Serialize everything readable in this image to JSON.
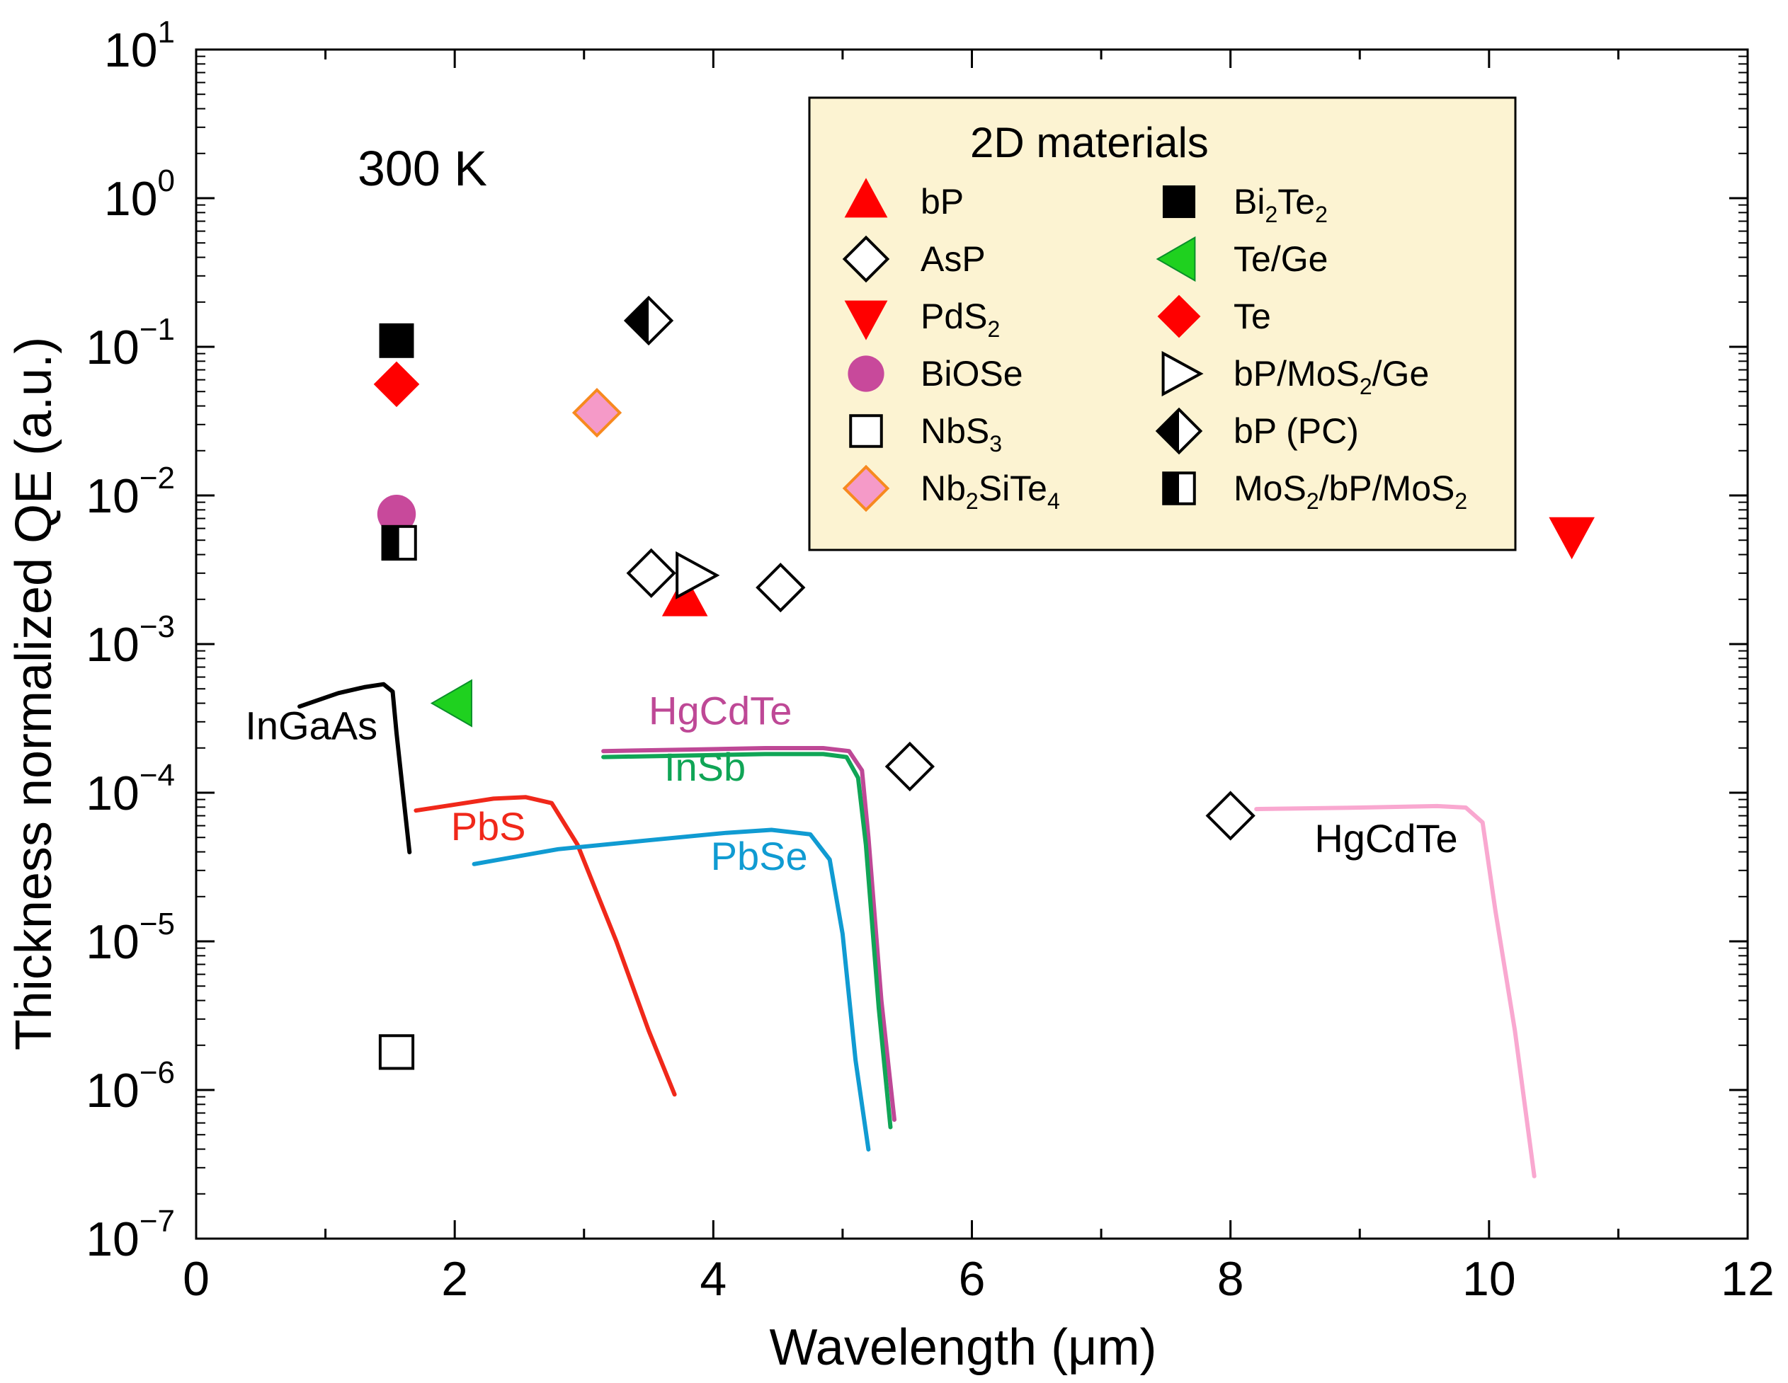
{
  "chart_data": {
    "type": "scatter",
    "xlabel": "Wavelength (μm)",
    "ylabel": "Thickness normalized QE (a.u.)",
    "xlim": [
      0,
      12
    ],
    "ylim_log10": [
      -7,
      1
    ],
    "x_ticks": [
      0,
      2,
      4,
      6,
      8,
      10,
      12
    ],
    "y_ticks": [
      {
        "base": "10",
        "exp": "1",
        "value": 1
      },
      {
        "base": "10",
        "exp": "0",
        "value": 0
      },
      {
        "base": "10",
        "exp": "−1",
        "value": -1
      },
      {
        "base": "10",
        "exp": "−2",
        "value": -2
      },
      {
        "base": "10",
        "exp": "−3",
        "value": -3
      },
      {
        "base": "10",
        "exp": "−4",
        "value": -4
      },
      {
        "base": "10",
        "exp": "−5",
        "value": -5
      },
      {
        "base": "10",
        "exp": "−6",
        "value": -6
      },
      {
        "base": "10",
        "exp": "−7",
        "value": -7
      }
    ],
    "annotation": "300 K",
    "legend": {
      "title": "2D materials",
      "placement": "top-right",
      "background": "#fcf3d2",
      "entries": [
        {
          "id": "bP",
          "marker": "triangle-up",
          "color": "#ff0000",
          "parts": [
            {
              "t": "bP"
            }
          ]
        },
        {
          "id": "AsP",
          "marker": "diamond-open",
          "color": "#000000",
          "parts": [
            {
              "t": "AsP"
            }
          ]
        },
        {
          "id": "PdS2",
          "marker": "triangle-down",
          "color": "#ff0000",
          "parts": [
            {
              "t": "PdS"
            },
            {
              "t": "2",
              "sub": true
            }
          ]
        },
        {
          "id": "BiOSe",
          "marker": "circle",
          "color": "#c8499b",
          "parts": [
            {
              "t": "BiOSe"
            }
          ]
        },
        {
          "id": "NbS3",
          "marker": "square-open",
          "color": "#000000",
          "parts": [
            {
              "t": "NbS"
            },
            {
              "t": "3",
              "sub": true
            }
          ]
        },
        {
          "id": "Nb2SiTe4",
          "marker": "diamond-pink",
          "color": "#f59ac8",
          "edge": "#f7891f",
          "parts": [
            {
              "t": "Nb"
            },
            {
              "t": "2",
              "sub": true
            },
            {
              "t": "SiTe"
            },
            {
              "t": "4",
              "sub": true
            }
          ]
        },
        {
          "id": "Bi2Te2",
          "marker": "square",
          "color": "#000000",
          "parts": [
            {
              "t": "Bi"
            },
            {
              "t": "2",
              "sub": true
            },
            {
              "t": "Te"
            },
            {
              "t": "2",
              "sub": true
            }
          ]
        },
        {
          "id": "TeGe",
          "marker": "triangle-left",
          "color": "#1fd11f",
          "parts": [
            {
              "t": "Te/Ge"
            }
          ]
        },
        {
          "id": "Te",
          "marker": "diamond",
          "color": "#ff0000",
          "parts": [
            {
              "t": "Te"
            }
          ]
        },
        {
          "id": "bPMoS2Ge",
          "marker": "triangle-right-open",
          "color": "#000000",
          "parts": [
            {
              "t": "bP/MoS"
            },
            {
              "t": "2",
              "sub": true
            },
            {
              "t": "/Ge"
            }
          ]
        },
        {
          "id": "bPPC",
          "marker": "diamond-half",
          "color": "#000000",
          "parts": [
            {
              "t": "bP (PC)"
            }
          ]
        },
        {
          "id": "MoS2bPMoS2",
          "marker": "square-half",
          "color": "#000000",
          "parts": [
            {
              "t": "MoS"
            },
            {
              "t": "2",
              "sub": true
            },
            {
              "t": "/bP/MoS"
            },
            {
              "t": "2",
              "sub": true
            }
          ]
        }
      ]
    },
    "points": [
      {
        "series": "bP",
        "x": 3.78,
        "y": 0.002
      },
      {
        "series": "AsP",
        "x": 3.52,
        "y": 0.003
      },
      {
        "series": "AsP",
        "x": 4.52,
        "y": 0.0024
      },
      {
        "series": "AsP",
        "x": 5.52,
        "y": 0.00015
      },
      {
        "series": "AsP",
        "x": 8.0,
        "y": 7e-05
      },
      {
        "series": "PdS2",
        "x": 10.64,
        "y": 0.0055
      },
      {
        "series": "BiOSe",
        "x": 1.55,
        "y": 0.0075
      },
      {
        "series": "NbS3",
        "x": 1.55,
        "y": 1.8e-06
      },
      {
        "series": "Nb2SiTe4",
        "x": 3.1,
        "y": 0.036
      },
      {
        "series": "Bi2Te2",
        "x": 1.55,
        "y": 0.11
      },
      {
        "series": "TeGe",
        "x": 2.0,
        "y": 0.0004
      },
      {
        "series": "Te",
        "x": 1.55,
        "y": 0.056
      },
      {
        "series": "bPMoS2Ge",
        "x": 3.85,
        "y": 0.0029
      },
      {
        "series": "bPPC",
        "x": 3.5,
        "y": 0.15
      },
      {
        "series": "MoS2bPMoS2",
        "x": 1.57,
        "y": 0.0048
      }
    ],
    "curves": [
      {
        "name": "InGaAs",
        "color": "#000000",
        "label_color": "#000000",
        "label": {
          "x": 0.38,
          "log": -3.64,
          "anchor": "start"
        },
        "points": [
          [
            0.8,
            -3.42
          ],
          [
            1.1,
            -3.33
          ],
          [
            1.3,
            -3.29
          ],
          [
            1.45,
            -3.27
          ],
          [
            1.52,
            -3.32
          ],
          [
            1.55,
            -3.6
          ],
          [
            1.6,
            -4.0
          ],
          [
            1.65,
            -4.4
          ]
        ]
      },
      {
        "name": "PbS",
        "color": "#f0281a",
        "label_color": "#f0281a",
        "label": {
          "x": 1.97,
          "log": -4.32,
          "anchor": "start"
        },
        "points": [
          [
            1.7,
            -4.12
          ],
          [
            2.0,
            -4.08
          ],
          [
            2.3,
            -4.04
          ],
          [
            2.55,
            -4.03
          ],
          [
            2.75,
            -4.07
          ],
          [
            2.95,
            -4.35
          ],
          [
            3.25,
            -5.0
          ],
          [
            3.5,
            -5.6
          ],
          [
            3.7,
            -6.03
          ]
        ]
      },
      {
        "name": "HgCdTe",
        "color": "#be4896",
        "label_color": "#be4896",
        "label": {
          "x": 3.5,
          "log": -3.54,
          "anchor": "start"
        },
        "points": [
          [
            3.15,
            -3.72
          ],
          [
            3.8,
            -3.71
          ],
          [
            4.4,
            -3.7
          ],
          [
            4.85,
            -3.7
          ],
          [
            5.05,
            -3.72
          ],
          [
            5.15,
            -3.85
          ],
          [
            5.2,
            -4.3
          ],
          [
            5.3,
            -5.4
          ],
          [
            5.4,
            -6.2
          ]
        ]
      },
      {
        "name": "InSb",
        "color": "#10a556",
        "label_color": "#10a556",
        "label": {
          "x": 3.62,
          "log": -3.92,
          "anchor": "start"
        },
        "points": [
          [
            3.15,
            -3.76
          ],
          [
            3.8,
            -3.75
          ],
          [
            4.4,
            -3.74
          ],
          [
            4.85,
            -3.74
          ],
          [
            5.03,
            -3.76
          ],
          [
            5.12,
            -3.9
          ],
          [
            5.18,
            -4.35
          ],
          [
            5.28,
            -5.45
          ],
          [
            5.37,
            -6.25
          ]
        ]
      },
      {
        "name": "PbSe",
        "color": "#109bd2",
        "label_color": "#109bd2",
        "label": {
          "x": 3.98,
          "log": -4.52,
          "anchor": "start"
        },
        "points": [
          [
            2.15,
            -4.48
          ],
          [
            2.8,
            -4.38
          ],
          [
            3.5,
            -4.32
          ],
          [
            4.1,
            -4.27
          ],
          [
            4.45,
            -4.25
          ],
          [
            4.75,
            -4.28
          ],
          [
            4.9,
            -4.45
          ],
          [
            5.0,
            -4.95
          ],
          [
            5.1,
            -5.8
          ],
          [
            5.2,
            -6.4
          ]
        ]
      },
      {
        "name": "HgCdTe",
        "color": "#f9a8d0",
        "label_color": "#000000",
        "label": {
          "x": 8.65,
          "log": -4.4,
          "anchor": "start"
        },
        "points": [
          [
            8.2,
            -4.11
          ],
          [
            9.0,
            -4.1
          ],
          [
            9.6,
            -4.09
          ],
          [
            9.82,
            -4.1
          ],
          [
            9.95,
            -4.2
          ],
          [
            10.05,
            -4.8
          ],
          [
            10.2,
            -5.6
          ],
          [
            10.35,
            -6.58
          ]
        ]
      }
    ]
  }
}
